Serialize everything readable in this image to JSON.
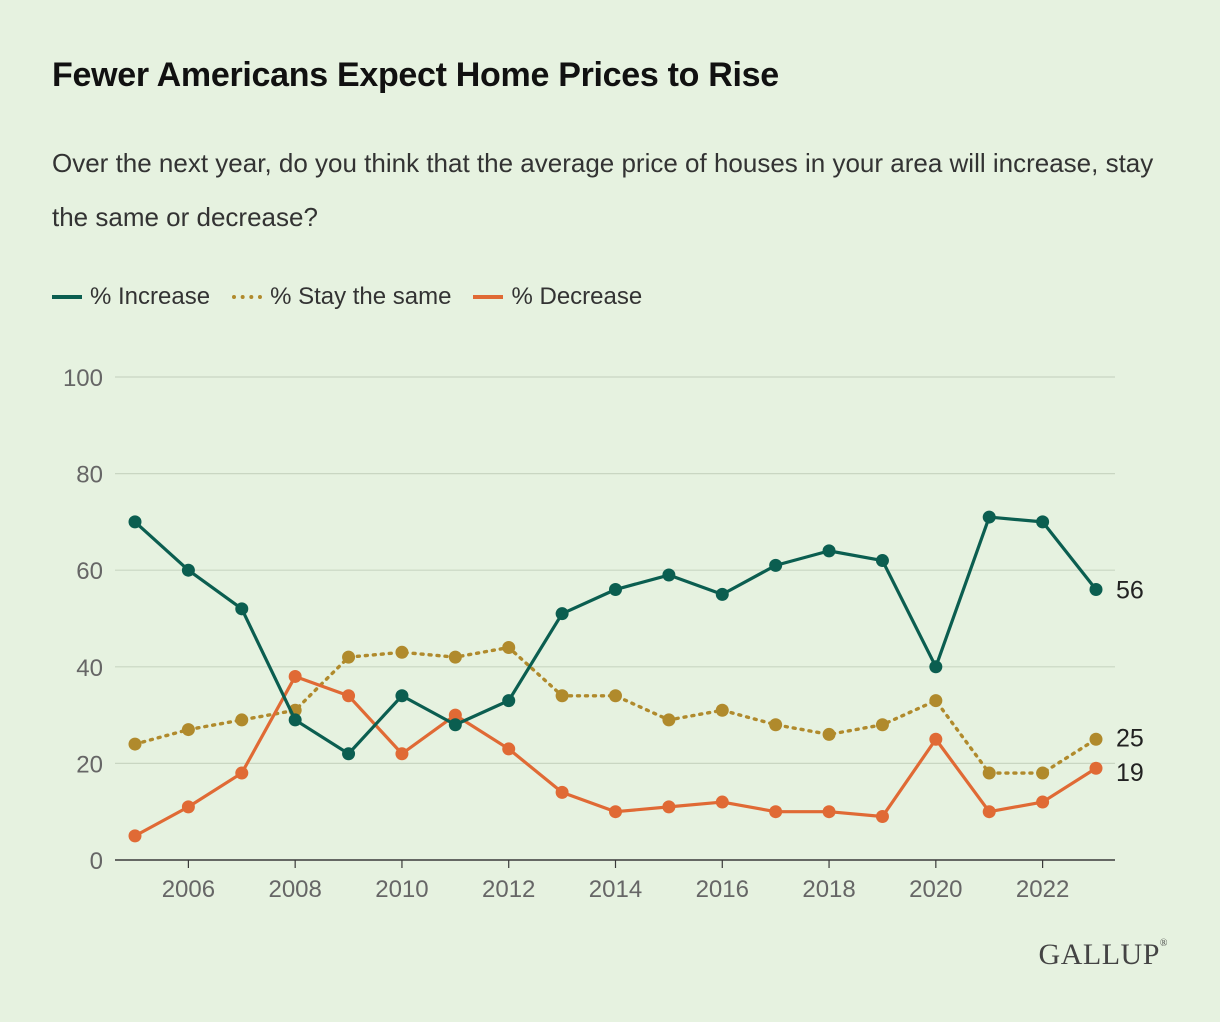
{
  "title": "Fewer Americans Expect Home Prices to Rise",
  "subtitle": "Over the next year, do you think that the average price of houses in your area will increase, stay the same or decrease?",
  "logo": "GALLUP",
  "chart_data": {
    "type": "line",
    "x": [
      2005,
      2006,
      2007,
      2008,
      2009,
      2010,
      2011,
      2012,
      2013,
      2014,
      2015,
      2016,
      2017,
      2018,
      2019,
      2020,
      2021,
      2022,
      2023
    ],
    "x_tick_labels": [
      "2006",
      "2008",
      "2010",
      "2012",
      "2014",
      "2016",
      "2018",
      "2020",
      "2022"
    ],
    "y_tick_labels": [
      "0",
      "20",
      "40",
      "60",
      "80",
      "100"
    ],
    "ylim": [
      0,
      100
    ],
    "grid": true,
    "legend_placement": "top-left",
    "series": [
      {
        "name": "% Increase",
        "style": "solid",
        "color": "#0b5e50",
        "values": [
          70,
          60,
          52,
          29,
          22,
          34,
          28,
          33,
          51,
          56,
          59,
          55,
          61,
          64,
          62,
          40,
          71,
          70,
          56
        ],
        "end_label": "56"
      },
      {
        "name": "% Stay the same",
        "style": "dotted",
        "color": "#b08a2c",
        "values": [
          24,
          27,
          29,
          31,
          42,
          43,
          42,
          44,
          34,
          34,
          29,
          31,
          28,
          26,
          28,
          33,
          18,
          18,
          25
        ],
        "end_label": "25"
      },
      {
        "name": "% Decrease",
        "style": "solid",
        "color": "#e06a35",
        "values": [
          5,
          11,
          18,
          38,
          34,
          22,
          30,
          23,
          14,
          10,
          11,
          12,
          10,
          10,
          9,
          25,
          10,
          12,
          19
        ],
        "end_label": "19"
      }
    ]
  }
}
